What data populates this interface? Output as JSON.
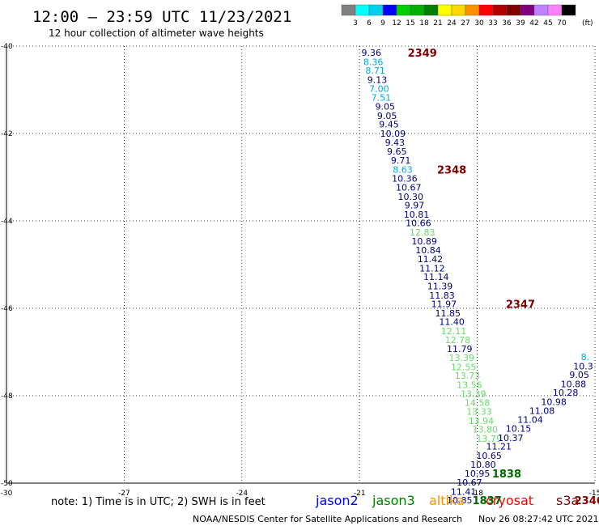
{
  "header": {
    "title": "12:00 – 23:59 UTC 11/23/2021",
    "subtitle": "12 hour collection of altimeter wave heights"
  },
  "colorbar": {
    "labels": [
      "3",
      "6",
      "9",
      "12",
      "15",
      "18",
      "21",
      "24",
      "27",
      "30",
      "33",
      "36",
      "39",
      "42",
      "45",
      "70"
    ],
    "unit": "(ft)",
    "colors": [
      "#808080",
      "#00ffff",
      "#00d0f0",
      "#0000ff",
      "#00d000",
      "#00b000",
      "#008000",
      "#ffff00",
      "#ffd700",
      "#ff9000",
      "#ff0000",
      "#b00000",
      "#800000",
      "#800080",
      "#c080ff",
      "#ff80ff",
      "#000000"
    ]
  },
  "footer": {
    "note": "note: 1) Time is in UTC; 2) SWH is in feet",
    "credit": "NOAA/NESDIS Center for Satellite Applications and Research",
    "timestamp": "Nov 26 08:27:42 UTC 2021"
  },
  "chart_data": {
    "type": "scatter",
    "xlim": [
      -30,
      -15
    ],
    "ylim": [
      -50,
      -40
    ],
    "x_ticks": [
      -30,
      -27,
      -24,
      -21,
      -18,
      -15
    ],
    "y_ticks": [
      -40,
      -42,
      -44,
      -46,
      -48,
      -50
    ],
    "grid": true,
    "legend": [
      {
        "name": "jason2",
        "color": "#0000ff"
      },
      {
        "name": "jason3",
        "color": "#008000"
      },
      {
        "name": "altika",
        "color": "#ff9000"
      },
      {
        "name": "cryosat",
        "color": "#ff0000"
      },
      {
        "name": "s3a",
        "color": "#800000"
      }
    ],
    "series": [
      {
        "color_note": "pass A",
        "points": [
          {
            "x": -20.7,
            "y": -40.15,
            "v": "9.36",
            "c": "#000080"
          },
          {
            "x": -20.65,
            "y": -40.36,
            "v": "8.36",
            "c": "#00aadd"
          },
          {
            "x": -20.6,
            "y": -40.56,
            "v": "8.71",
            "c": "#00aadd"
          },
          {
            "x": -20.55,
            "y": -40.77,
            "v": "9.13",
            "c": "#000080"
          },
          {
            "x": -20.5,
            "y": -40.97,
            "v": "7.00",
            "c": "#00aadd"
          },
          {
            "x": -20.45,
            "y": -41.18,
            "v": "7.51",
            "c": "#00aadd"
          },
          {
            "x": -20.35,
            "y": -41.38,
            "v": "9.05",
            "c": "#000080"
          },
          {
            "x": -20.3,
            "y": -41.59,
            "v": "9.05",
            "c": "#000080"
          },
          {
            "x": -20.25,
            "y": -41.79,
            "v": "9.45",
            "c": "#000080"
          },
          {
            "x": -20.15,
            "y": -42.0,
            "v": "10.09",
            "c": "#000080"
          },
          {
            "x": -20.1,
            "y": -42.2,
            "v": "9.43",
            "c": "#000080"
          },
          {
            "x": -20.05,
            "y": -42.41,
            "v": "9.65",
            "c": "#000080"
          },
          {
            "x": -19.95,
            "y": -42.61,
            "v": "9.71",
            "c": "#000080"
          },
          {
            "x": -19.9,
            "y": -42.82,
            "v": "8.63",
            "c": "#00aadd"
          },
          {
            "x": -19.85,
            "y": -43.03,
            "v": "10.36",
            "c": "#000080"
          },
          {
            "x": -19.75,
            "y": -43.23,
            "v": "10.67",
            "c": "#000080"
          },
          {
            "x": -19.7,
            "y": -43.44,
            "v": "10.30",
            "c": "#000080"
          },
          {
            "x": -19.6,
            "y": -43.64,
            "v": "9.97",
            "c": "#000080"
          },
          {
            "x": -19.55,
            "y": -43.85,
            "v": "10.81",
            "c": "#000080"
          },
          {
            "x": -19.5,
            "y": -44.05,
            "v": "10.66",
            "c": "#000080"
          },
          {
            "x": -19.4,
            "y": -44.26,
            "v": "12.83",
            "c": "#66dd66"
          },
          {
            "x": -19.35,
            "y": -44.46,
            "v": "10.89",
            "c": "#000080"
          },
          {
            "x": -19.25,
            "y": -44.67,
            "v": "10.84",
            "c": "#000080"
          },
          {
            "x": -19.2,
            "y": -44.87,
            "v": "11.42",
            "c": "#000080"
          },
          {
            "x": -19.15,
            "y": -45.08,
            "v": "11.12",
            "c": "#000080"
          },
          {
            "x": -19.05,
            "y": -45.28,
            "v": "11.14",
            "c": "#000080"
          },
          {
            "x": -18.95,
            "y": -45.49,
            "v": "11.39",
            "c": "#000080"
          },
          {
            "x": -18.9,
            "y": -45.7,
            "v": "11.83",
            "c": "#000080"
          },
          {
            "x": -18.85,
            "y": -45.9,
            "v": "11.97",
            "c": "#000080"
          },
          {
            "x": -18.75,
            "y": -46.11,
            "v": "11.85",
            "c": "#000080"
          },
          {
            "x": -18.65,
            "y": -46.31,
            "v": "11.40",
            "c": "#000080"
          },
          {
            "x": -18.6,
            "y": -46.52,
            "v": "12.11",
            "c": "#66dd66"
          },
          {
            "x": -18.5,
            "y": -46.72,
            "v": "12.78",
            "c": "#66dd66"
          },
          {
            "x": -18.45,
            "y": -46.93,
            "v": "11.79",
            "c": "#000080"
          },
          {
            "x": -18.4,
            "y": -47.13,
            "v": "13.39",
            "c": "#66dd66"
          },
          {
            "x": -18.35,
            "y": -47.34,
            "v": "12.55",
            "c": "#66dd66"
          },
          {
            "x": -18.25,
            "y": -47.54,
            "v": "13.73",
            "c": "#66dd66"
          },
          {
            "x": -18.2,
            "y": -47.75,
            "v": "13.56",
            "c": "#66dd66"
          },
          {
            "x": -18.1,
            "y": -47.95,
            "v": "13.39",
            "c": "#66dd66"
          },
          {
            "x": -18.0,
            "y": -48.16,
            "v": "14.58",
            "c": "#66dd66"
          },
          {
            "x": -17.95,
            "y": -48.36,
            "v": "13.33",
            "c": "#66dd66"
          },
          {
            "x": -17.9,
            "y": -48.57,
            "v": "13.94",
            "c": "#66dd66"
          },
          {
            "x": -17.8,
            "y": -48.77,
            "v": "13.80",
            "c": "#66dd66"
          },
          {
            "x": -17.7,
            "y": -48.98,
            "v": "13.79",
            "c": "#66dd66"
          }
        ]
      },
      {
        "color_note": "pass B",
        "points": [
          {
            "x": -15.25,
            "y": -47.11,
            "v": "8.",
            "c": "#00aadd"
          },
          {
            "x": -15.3,
            "y": -47.32,
            "v": "10.3",
            "c": "#000080"
          },
          {
            "x": -15.4,
            "y": -47.52,
            "v": "9.05",
            "c": "#000080"
          },
          {
            "x": -15.55,
            "y": -47.73,
            "v": "10.88",
            "c": "#000080"
          },
          {
            "x": -15.75,
            "y": -47.93,
            "v": "10.28",
            "c": "#000080"
          },
          {
            "x": -16.05,
            "y": -48.14,
            "v": "10.98",
            "c": "#000080"
          },
          {
            "x": -16.35,
            "y": -48.34,
            "v": "11.08",
            "c": "#000080"
          },
          {
            "x": -16.65,
            "y": -48.55,
            "v": "11.04",
            "c": "#000080"
          },
          {
            "x": -16.95,
            "y": -48.75,
            "v": "10.15",
            "c": "#000080"
          },
          {
            "x": -17.15,
            "y": -48.96,
            "v": "10.37",
            "c": "#000080"
          },
          {
            "x": -17.45,
            "y": -49.16,
            "v": "11.21",
            "c": "#000080"
          },
          {
            "x": -17.7,
            "y": -49.37,
            "v": "10.65",
            "c": "#000080"
          },
          {
            "x": -17.85,
            "y": -49.57,
            "v": "10.80",
            "c": "#000080"
          },
          {
            "x": -18.0,
            "y": -49.78,
            "v": "10.95",
            "c": "#000080"
          },
          {
            "x": -18.2,
            "y": -49.98,
            "v": "10.67",
            "c": "#000080"
          },
          {
            "x": -18.35,
            "y": -50.19,
            "v": "11.41",
            "c": "#000080"
          },
          {
            "x": -18.45,
            "y": -50.39,
            "v": "10.85",
            "c": "#000080"
          }
        ]
      }
    ],
    "time_labels": [
      {
        "x": -19.4,
        "y": -40.15,
        "t": "2349",
        "c": "#800000"
      },
      {
        "x": -18.65,
        "y": -42.82,
        "t": "2348",
        "c": "#800000"
      },
      {
        "x": -16.9,
        "y": -45.9,
        "t": "2347",
        "c": "#800000"
      },
      {
        "x": -15.15,
        "y": -50.39,
        "t": "2346",
        "c": "#800000"
      },
      {
        "x": -17.25,
        "y": -49.78,
        "t": "1838",
        "c": "#006600"
      },
      {
        "x": -17.75,
        "y": -50.39,
        "t": "1837",
        "c": "#006600"
      }
    ]
  }
}
